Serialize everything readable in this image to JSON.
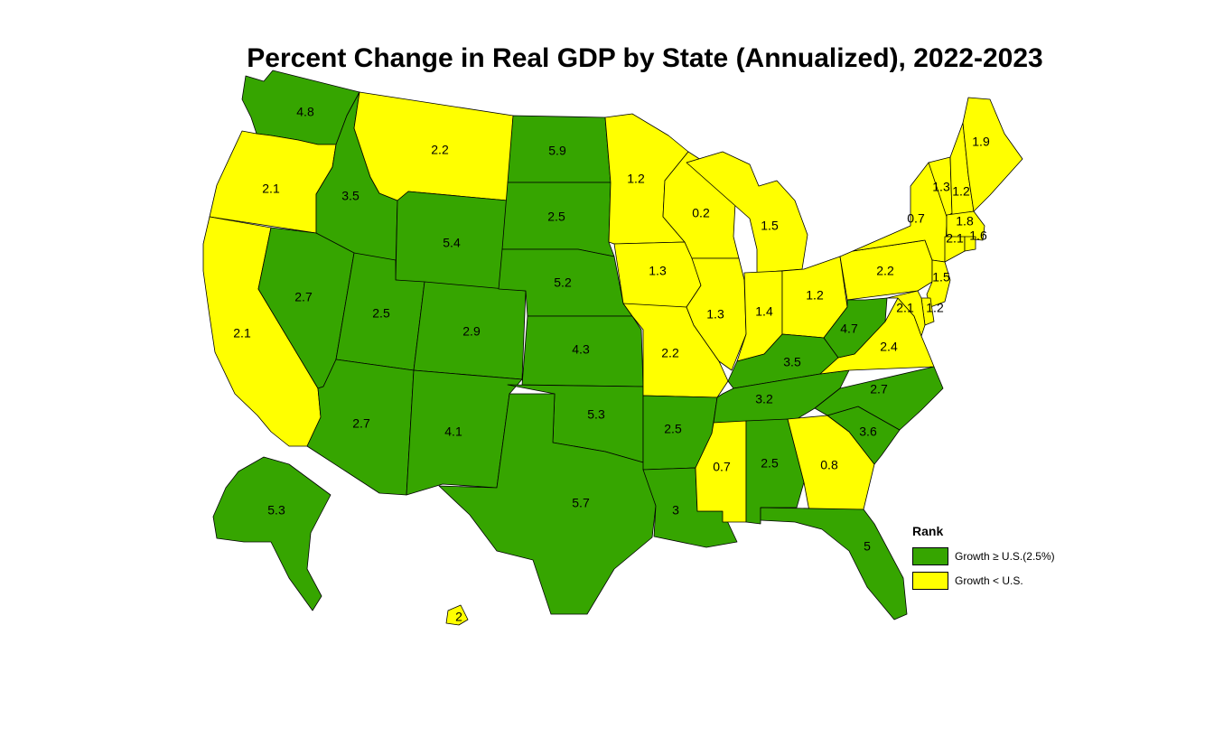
{
  "title": "Percent Change in Real GDP by State (Annualized), 2022-2023",
  "colors": {
    "above": "#36a500",
    "below": "#ffff00"
  },
  "legend": {
    "title": "Rank",
    "items": [
      {
        "label": "Growth ≥ U.S.(2.5%)",
        "key": "above"
      },
      {
        "label": "Growth < U.S.",
        "key": "below"
      }
    ]
  },
  "states": [
    {
      "id": "WA",
      "value": "4.8",
      "class": "above"
    },
    {
      "id": "OR",
      "value": "2.1",
      "class": "below"
    },
    {
      "id": "CA",
      "value": "2.1",
      "class": "below"
    },
    {
      "id": "ID",
      "value": "3.5",
      "class": "above"
    },
    {
      "id": "NV",
      "value": "2.7",
      "class": "above"
    },
    {
      "id": "MT",
      "value": "2.2",
      "class": "below"
    },
    {
      "id": "WY",
      "value": "5.4",
      "class": "above"
    },
    {
      "id": "UT",
      "value": "2.5",
      "class": "above"
    },
    {
      "id": "AZ",
      "value": "2.7",
      "class": "above"
    },
    {
      "id": "CO",
      "value": "2.9",
      "class": "above"
    },
    {
      "id": "NM",
      "value": "4.1",
      "class": "above"
    },
    {
      "id": "ND",
      "value": "5.9",
      "class": "above"
    },
    {
      "id": "SD",
      "value": "2.5",
      "class": "above"
    },
    {
      "id": "NE",
      "value": "5.2",
      "class": "above"
    },
    {
      "id": "KS",
      "value": "4.3",
      "class": "above"
    },
    {
      "id": "OK",
      "value": "5.3",
      "class": "above"
    },
    {
      "id": "TX",
      "value": "5.7",
      "class": "above"
    },
    {
      "id": "MN",
      "value": "1.2",
      "class": "below"
    },
    {
      "id": "IA",
      "value": "1.3",
      "class": "below"
    },
    {
      "id": "MO",
      "value": "2.2",
      "class": "below"
    },
    {
      "id": "AR",
      "value": "2.5",
      "class": "above"
    },
    {
      "id": "LA",
      "value": "3",
      "class": "above"
    },
    {
      "id": "WI",
      "value": "0.2",
      "class": "below"
    },
    {
      "id": "IL",
      "value": "1.3",
      "class": "below"
    },
    {
      "id": "MI",
      "value": "1.5",
      "class": "below"
    },
    {
      "id": "IN",
      "value": "1.4",
      "class": "below"
    },
    {
      "id": "OH",
      "value": "1.2",
      "class": "below"
    },
    {
      "id": "KY",
      "value": "3.5",
      "class": "above"
    },
    {
      "id": "TN",
      "value": "3.2",
      "class": "above"
    },
    {
      "id": "MS",
      "value": "0.7",
      "class": "below"
    },
    {
      "id": "AL",
      "value": "2.5",
      "class": "above"
    },
    {
      "id": "GA",
      "value": "0.8",
      "class": "below"
    },
    {
      "id": "FL",
      "value": "5",
      "class": "above"
    },
    {
      "id": "SC",
      "value": "3.6",
      "class": "above"
    },
    {
      "id": "NC",
      "value": "2.7",
      "class": "above"
    },
    {
      "id": "VA",
      "value": "2.4",
      "class": "below"
    },
    {
      "id": "WV",
      "value": "4.7",
      "class": "above"
    },
    {
      "id": "PA",
      "value": "2.2",
      "class": "below"
    },
    {
      "id": "NY",
      "value": "0.7",
      "class": "below"
    },
    {
      "id": "VT",
      "value": "1.3",
      "class": "below"
    },
    {
      "id": "NH",
      "value": "1.2",
      "class": "below"
    },
    {
      "id": "ME",
      "value": "1.9",
      "class": "below"
    },
    {
      "id": "MA",
      "value": "1.8",
      "class": "below"
    },
    {
      "id": "CT",
      "value": "2.1",
      "class": "below"
    },
    {
      "id": "RI",
      "value": "1.6",
      "class": "below"
    },
    {
      "id": "NJ",
      "value": "1.5",
      "class": "below"
    },
    {
      "id": "DE",
      "value": "1.2",
      "class": "below"
    },
    {
      "id": "MD",
      "value": "2.1",
      "class": "below"
    },
    {
      "id": "AK",
      "value": "5.3",
      "class": "above"
    },
    {
      "id": "HI",
      "value": "2",
      "class": "below"
    }
  ]
}
